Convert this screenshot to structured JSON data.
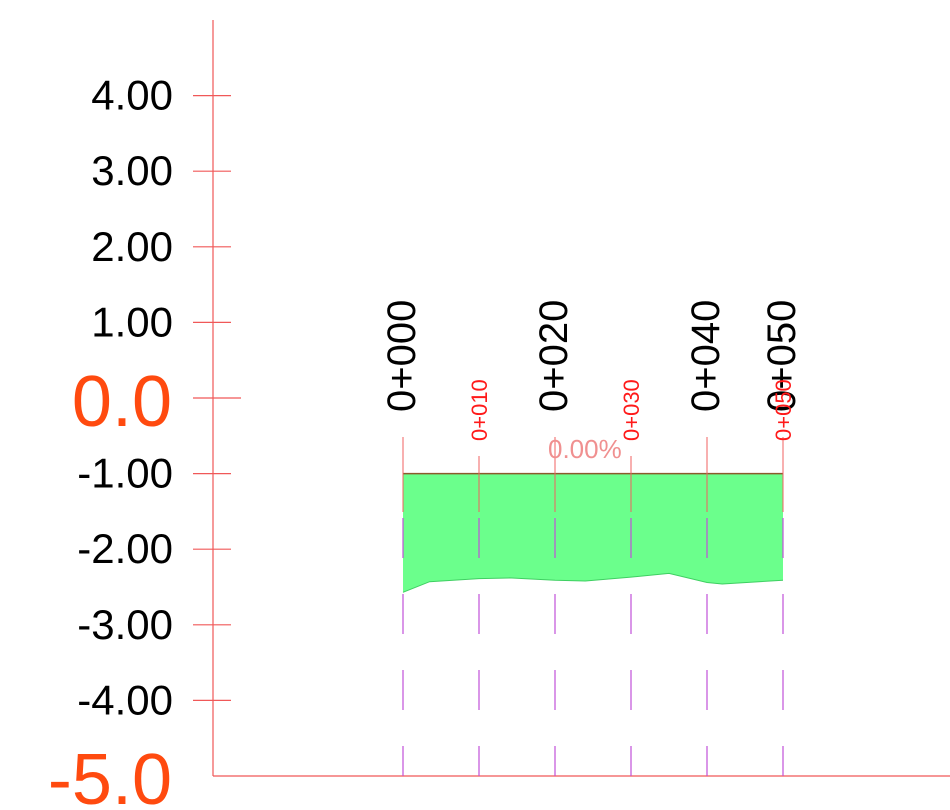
{
  "chart_data": {
    "type": "area",
    "y_labels": [
      {
        "value": 4,
        "label": "4.00",
        "major": false
      },
      {
        "value": 3,
        "label": "3.00",
        "major": false
      },
      {
        "value": 2,
        "label": "2.00",
        "major": false
      },
      {
        "value": 1,
        "label": "1.00",
        "major": false
      },
      {
        "value": 0,
        "label": "0.0",
        "major": true
      },
      {
        "value": -1,
        "label": "-1.00",
        "major": false
      },
      {
        "value": -2,
        "label": "-2.00",
        "major": false
      },
      {
        "value": -3,
        "label": "-3.00",
        "major": false
      },
      {
        "value": -4,
        "label": "-4.00",
        "major": false
      },
      {
        "value": -5,
        "label": "-5.0",
        "major": true
      }
    ],
    "ylim": [
      -5,
      4
    ],
    "xlim": [
      0,
      50
    ],
    "stations_major": [
      {
        "station": 0,
        "label": "0+000"
      },
      {
        "station": 20,
        "label": "0+020"
      },
      {
        "station": 40,
        "label": "0+040"
      },
      {
        "station": 50,
        "label": "0+050"
      }
    ],
    "stations_minor": [
      {
        "station": 10,
        "label": "0+010"
      },
      {
        "station": 30,
        "label": "0+030"
      },
      {
        "station": 50,
        "label": "0+050"
      }
    ],
    "design_grade": {
      "elevation": -1.0,
      "label": "0.00%"
    },
    "ground_profile": {
      "x": [
        0,
        3.5,
        10,
        14,
        20,
        24,
        30,
        35,
        40,
        42,
        50
      ],
      "y": [
        -2.57,
        -2.43,
        -2.39,
        -2.38,
        -2.41,
        -2.42,
        -2.37,
        -2.32,
        -2.44,
        -2.46,
        -2.41
      ]
    },
    "colors": {
      "axis": "#f05858",
      "fill": "#6bff8c",
      "grade_line": "#8b5a2b",
      "grade_label": "#f09090",
      "dashed_guides": "#c050d8",
      "major_label": "#ff4a0f",
      "minor_station": "#ff1a1a"
    }
  }
}
